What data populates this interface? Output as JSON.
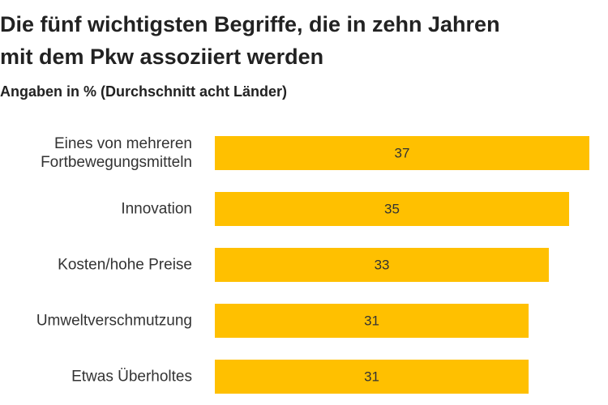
{
  "chart_data": {
    "type": "bar",
    "orientation": "horizontal",
    "title_lines": [
      "Die fünf wichtigsten Begriffe, die in zehn Jahren",
      "mit dem Pkw assoziiert werden"
    ],
    "subtitle": "Angaben in % (Durchschnitt acht Länder)",
    "categories": [
      [
        "Eines von mehreren",
        "Fortbewegungsmitteln"
      ],
      [
        "Innovation"
      ],
      [
        "Kosten/hohe Preise"
      ],
      [
        "Umweltverschmutzung"
      ],
      [
        "Etwas Überholtes"
      ]
    ],
    "values": [
      37,
      35,
      33,
      31,
      31
    ],
    "value_labels": [
      "37",
      "35",
      "33",
      "31",
      "31"
    ],
    "xlim": [
      0,
      37
    ],
    "grid": false,
    "bar_color": "#FFC000"
  }
}
